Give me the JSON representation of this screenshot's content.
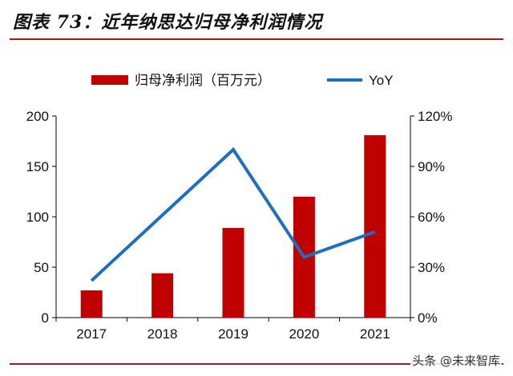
{
  "title": "图表 73：近年纳思达归母净利润情况",
  "watermark": "头条 @未来智库",
  "colors": {
    "bar": "#c00000",
    "line": "#1f6fbf",
    "accent_rule": "#a81515",
    "axis": "#000000"
  },
  "chart_data": {
    "type": "bar",
    "categories": [
      "2017",
      "2018",
      "2019",
      "2020",
      "2021"
    ],
    "series": [
      {
        "name": "归母净利润（百万元）",
        "type": "bar",
        "axis": "left",
        "values": [
          27,
          44,
          89,
          120,
          181
        ]
      },
      {
        "name": "YoY",
        "type": "line",
        "axis": "right",
        "values": [
          0.22,
          0.61,
          1.0,
          0.36,
          0.51
        ]
      }
    ],
    "y_left": {
      "range": [
        0,
        200
      ],
      "ticks": [
        0,
        50,
        100,
        150,
        200
      ],
      "tick_labels": [
        "0",
        "50",
        "100",
        "150",
        "200"
      ]
    },
    "y_right": {
      "range": [
        0,
        1.2
      ],
      "ticks": [
        0,
        0.3,
        0.6,
        0.9,
        1.2
      ],
      "tick_labels": [
        "0%",
        "30%",
        "60%",
        "90%",
        "120%"
      ]
    },
    "legend_position": "top",
    "grid": false
  }
}
